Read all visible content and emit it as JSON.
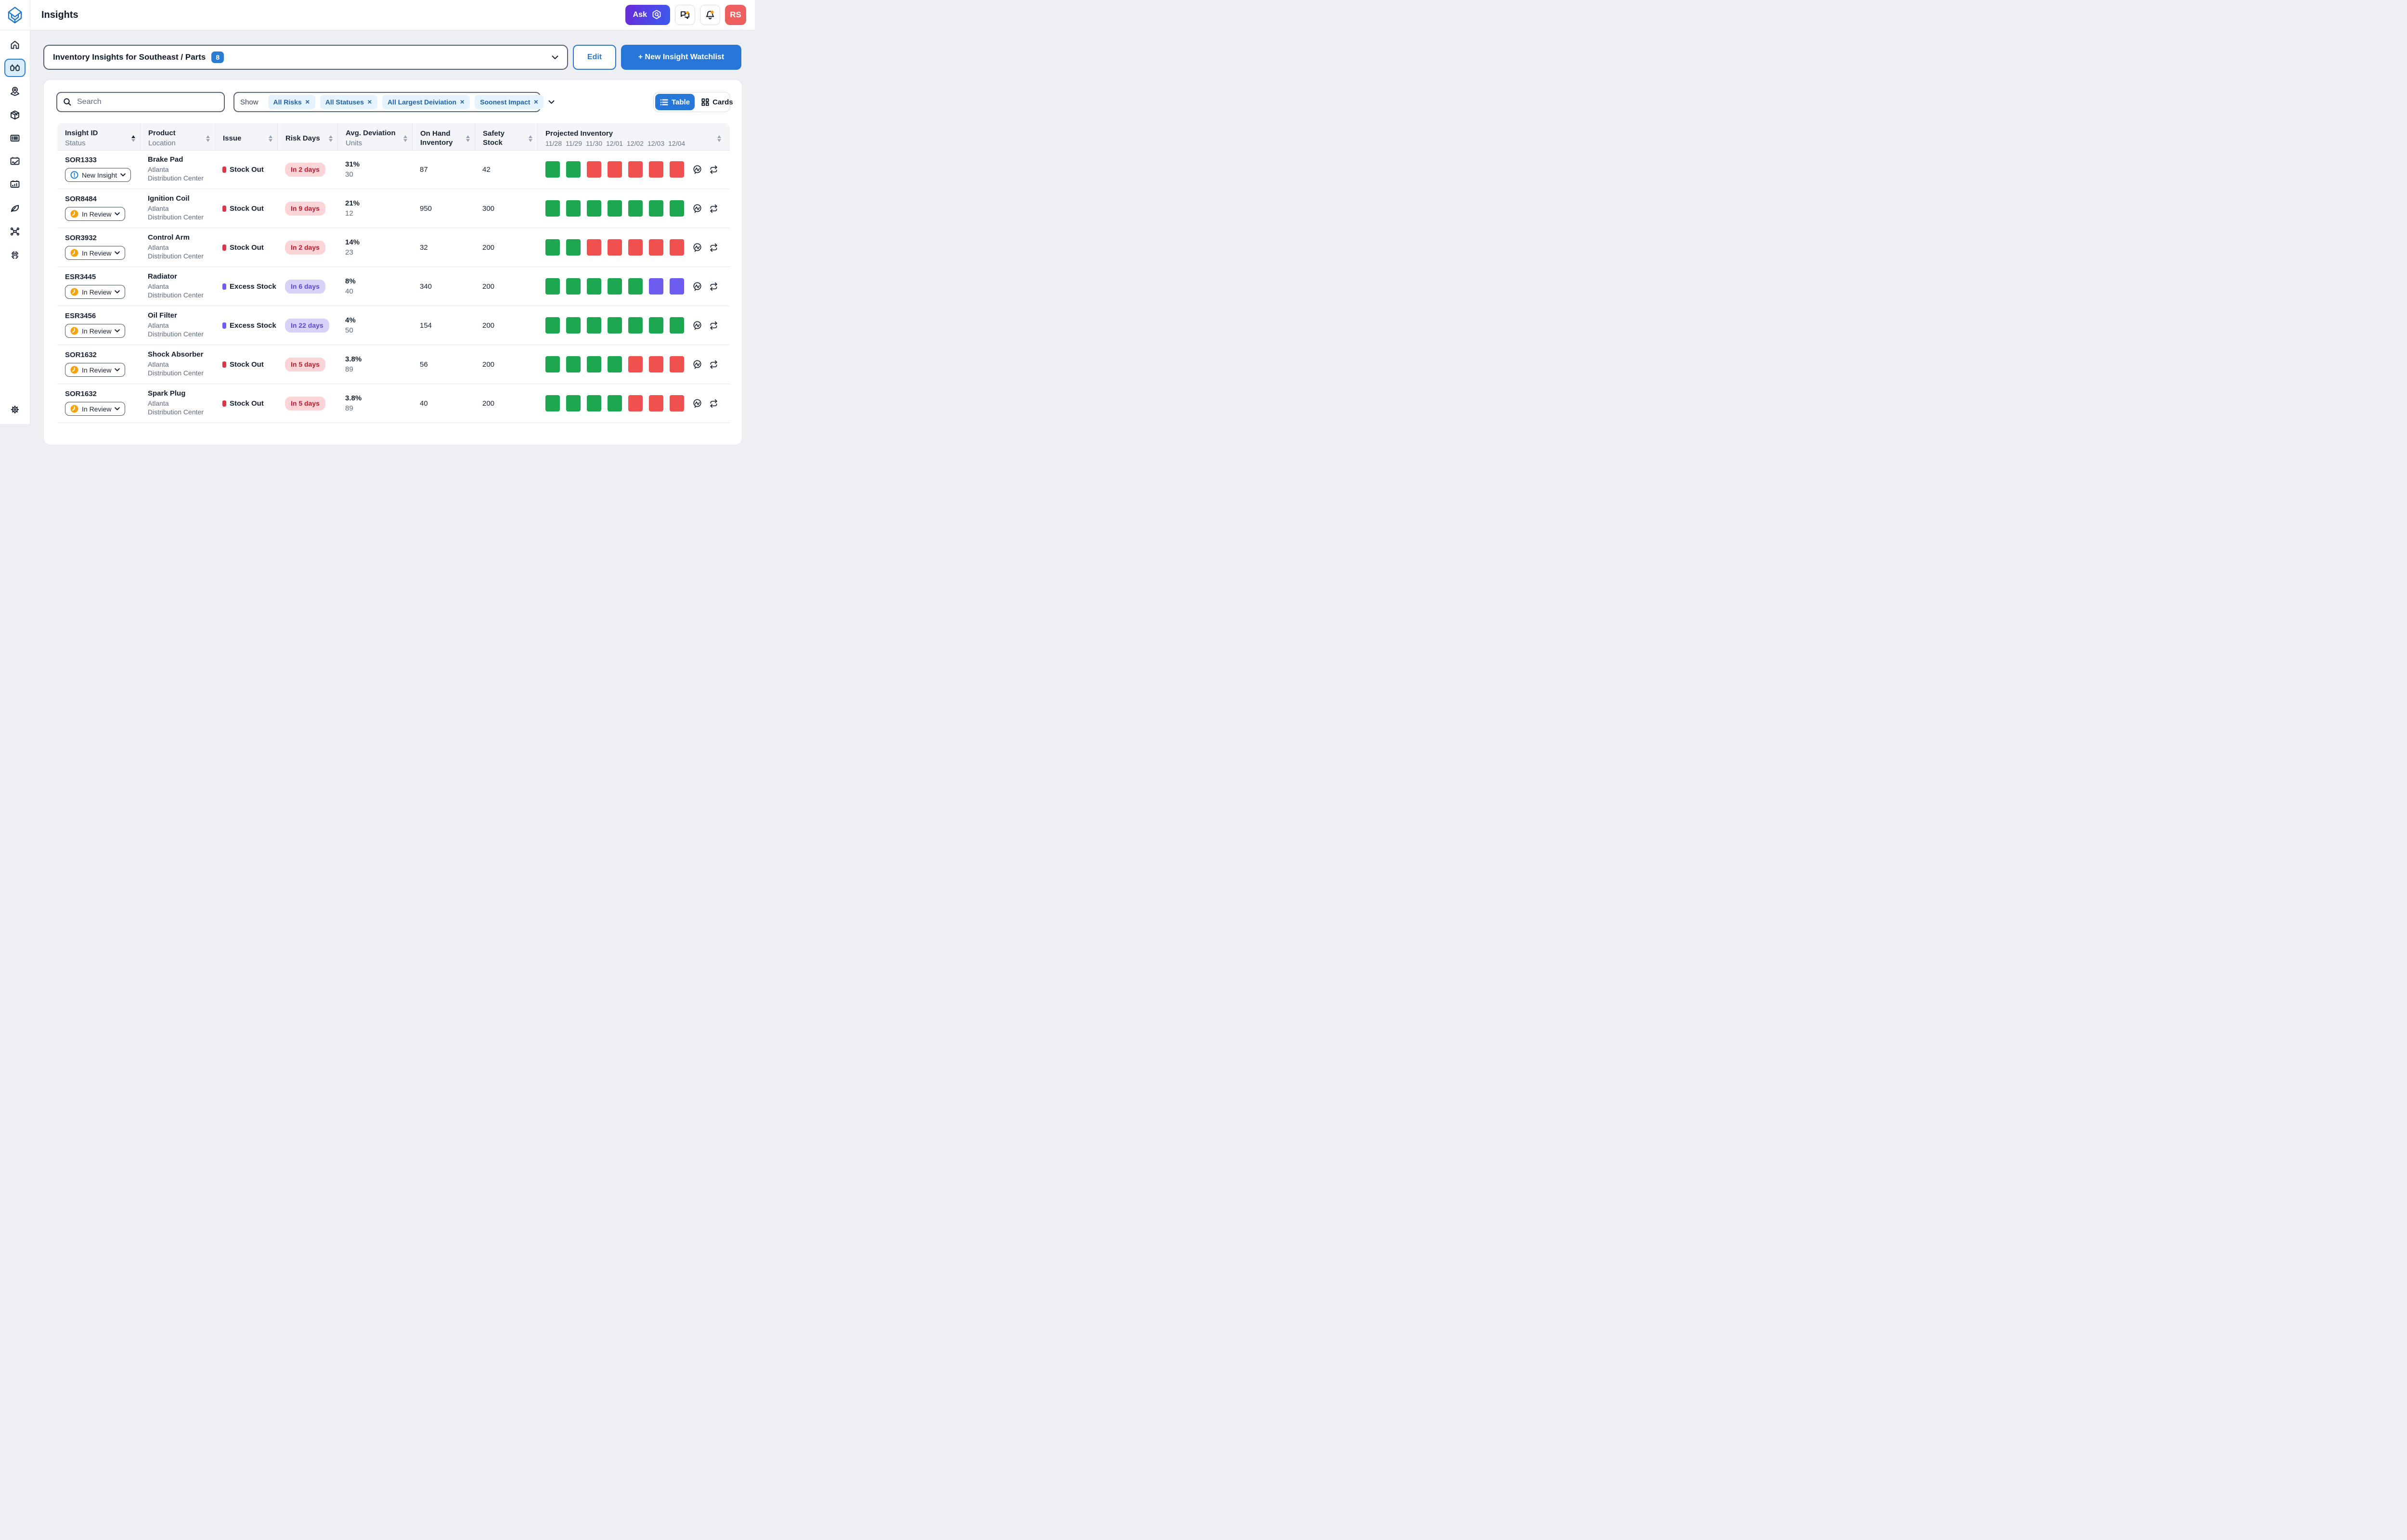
{
  "topbar": {
    "title": "Insights",
    "ask_label": "Ask",
    "avatar_initials": "RS"
  },
  "sidebar": {
    "items": [
      "home",
      "insights",
      "network-map",
      "package",
      "order-list",
      "contracts",
      "dashboard",
      "sustainability",
      "network-nodes",
      "radar"
    ],
    "active": "insights",
    "bottom": "settings"
  },
  "watchlist": {
    "selected": "Inventory Insights for Southeast / Parts",
    "count": "8",
    "edit_label": "Edit",
    "new_label": "+ New Insight Watchlist"
  },
  "filters": {
    "search_placeholder": "Search",
    "show_label": "Show",
    "chips": [
      "All Risks",
      "All Statuses",
      "All Largest Deiviation",
      "Soonest Impact"
    ]
  },
  "view_toggle": {
    "table_label": "Table",
    "cards_label": "Cards"
  },
  "table": {
    "headers": {
      "insight_id": {
        "primary": "Insight ID",
        "secondary": "Status"
      },
      "product": {
        "primary": "Product",
        "secondary": "Location"
      },
      "issue": {
        "primary": "Issue"
      },
      "risk_days": {
        "primary": "Risk Days"
      },
      "deviation": {
        "primary": "Avg. Deviation",
        "secondary": "Units"
      },
      "on_hand": {
        "primary": "On Hand Inventory"
      },
      "safety": {
        "primary": "Safety Stock"
      },
      "projected": {
        "primary": "Projected Inventory",
        "dates": [
          "11/28",
          "11/29",
          "11/30",
          "12/01",
          "12/02",
          "12/03",
          "12/04"
        ]
      }
    },
    "rows": [
      {
        "id": "SOR1333",
        "status": "New Insight",
        "status_type": "new",
        "product": "Brake Pad",
        "location": "Atlanta Distribution Center",
        "issue": "Stock Out",
        "issue_type": "stockout",
        "risk": "In 2 days",
        "deviation_pct": "31%",
        "deviation_units": "30",
        "on_hand": "87",
        "safety_stock": "42",
        "squares": [
          "green",
          "green",
          "red",
          "red",
          "red",
          "red",
          "red"
        ]
      },
      {
        "id": "SOR8484",
        "status": "In Review",
        "status_type": "review",
        "product": "Ignition Coil",
        "location": "Atlanta Distribution Center",
        "issue": "Stock Out",
        "issue_type": "stockout",
        "risk": "In 9 days",
        "deviation_pct": "21%",
        "deviation_units": "12",
        "on_hand": "950",
        "safety_stock": "300",
        "squares": [
          "green",
          "green",
          "green",
          "green",
          "green",
          "green",
          "green"
        ]
      },
      {
        "id": "SOR3932",
        "status": "In Review",
        "status_type": "review",
        "product": "Control Arm",
        "location": "Atlanta Distribution Center",
        "issue": "Stock Out",
        "issue_type": "stockout",
        "risk": "In 2 days",
        "deviation_pct": "14%",
        "deviation_units": "23",
        "on_hand": "32",
        "safety_stock": "200",
        "squares": [
          "green",
          "green",
          "red",
          "red",
          "red",
          "red",
          "red"
        ]
      },
      {
        "id": "ESR3445",
        "status": "In Review",
        "status_type": "review",
        "product": "Radiator",
        "location": "Atlanta Distribution Center",
        "issue": "Excess Stock",
        "issue_type": "excess",
        "risk": "In 6 days",
        "deviation_pct": "8%",
        "deviation_units": "40",
        "on_hand": "340",
        "safety_stock": "200",
        "squares": [
          "green",
          "green",
          "green",
          "green",
          "green",
          "purple",
          "purple"
        ]
      },
      {
        "id": "ESR3456",
        "status": "In Review",
        "status_type": "review",
        "product": "Oil Filter",
        "location": "Atlanta Distribution Center",
        "issue": "Excess Stock",
        "issue_type": "excess",
        "risk": "In 22 days",
        "deviation_pct": "4%",
        "deviation_units": "50",
        "on_hand": "154",
        "safety_stock": "200",
        "squares": [
          "green",
          "green",
          "green",
          "green",
          "green",
          "green",
          "green"
        ]
      },
      {
        "id": "SOR1632",
        "status": "In Review",
        "status_type": "review",
        "product": "Shock Absorber",
        "location": "Atlanta Distribution Center",
        "issue": "Stock Out",
        "issue_type": "stockout",
        "risk": "In 5 days",
        "deviation_pct": "3.8%",
        "deviation_units": "89",
        "on_hand": "56",
        "safety_stock": "200",
        "squares": [
          "green",
          "green",
          "green",
          "green",
          "red",
          "red",
          "red"
        ]
      },
      {
        "id": "SOR1632",
        "status": "In Review",
        "status_type": "review",
        "product": "Spark Plug",
        "location": "Atlanta Distribution Center",
        "issue": "Stock Out",
        "issue_type": "stockout",
        "risk": "In 5 days",
        "deviation_pct": "3.8%",
        "deviation_units": "89",
        "on_hand": "40",
        "safety_stock": "200",
        "squares": [
          "green",
          "green",
          "green",
          "green",
          "red",
          "red",
          "red"
        ]
      }
    ]
  },
  "colors": {
    "green": "#1CA750",
    "red": "#F0504E",
    "purple": "#6C5CF0",
    "accent_blue": "#2777D8",
    "badge_blue": "#2B7CD3",
    "chip_bg": "#E4F3FD",
    "chip_text": "#2161A8",
    "risk_red_bg": "#FBD4D7",
    "risk_red_text": "#BF1B2C",
    "risk_purple_bg": "#D8D2F8",
    "risk_purple_text": "#5A48D8",
    "status_new_blue": "#1D7FD7",
    "status_review_orange": "#F6A20A",
    "avatar_red": "#EE5F5F",
    "notification_orange": "#F59E0B",
    "logo_blue": "#1F78D1"
  }
}
